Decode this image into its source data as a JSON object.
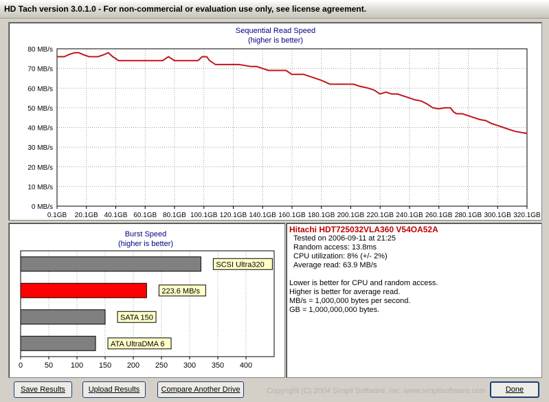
{
  "window": {
    "title": "HD Tach version 3.0.1.0  - For non-commercial or evaluation use only, see license agreement."
  },
  "colors": {
    "line": "#c0141e",
    "burst_highlight": "#ff0000",
    "burst_bar": "#808080",
    "label_bg": "#ffffc8",
    "drive_name": "#c00000"
  },
  "sequential": {
    "title": "Sequential Read Speed",
    "subtitle": "(higher is better)",
    "y_ticks": [
      "80 MB/s",
      "70 MB/s",
      "60 MB/s",
      "50 MB/s",
      "40 MB/s",
      "30 MB/s",
      "20 MB/s",
      "10 MB/s",
      "0 MB/s"
    ],
    "x_ticks": [
      "0.1GB",
      "20.1GB",
      "40.1GB",
      "60.1GB",
      "80.1GB",
      "100.1GB",
      "120.1GB",
      "140.1GB",
      "160.1GB",
      "180.1GB",
      "200.1GB",
      "220.1GB",
      "240.1GB",
      "260.1GB",
      "280.1GB",
      "300.1GB",
      "320.1GB"
    ]
  },
  "burst": {
    "title": "Burst Speed",
    "subtitle": "(higher is better)",
    "x_ticks": [
      "0",
      "50",
      "100",
      "150",
      "200",
      "250",
      "300",
      "350",
      "400"
    ],
    "bars": [
      {
        "label": "SCSI Ultra320",
        "value": 320,
        "highlight": false
      },
      {
        "label": "223.6 MB/s",
        "value": 223.6,
        "highlight": true
      },
      {
        "label": "SATA 150",
        "value": 150,
        "highlight": false
      },
      {
        "label": "ATA UltraDMA 6",
        "value": 133,
        "highlight": false
      }
    ]
  },
  "info": {
    "drive": "Hitachi HDT725032VLA360 V54OA52A",
    "tested": "Tested on 2006-09-11 at 21:25",
    "random_access": "Random access: 13.8ms",
    "cpu": "CPU utilization: 8% (+/- 2%)",
    "average_read": "Average read: 63.9 MB/s",
    "notes": [
      "Lower is better for CPU and random access.",
      "Higher is better for average read.",
      "MB/s = 1,000,000 bytes per second.",
      "GB = 1,000,000,000 bytes."
    ]
  },
  "buttons": {
    "save": "Save Results",
    "upload": "Upload Results",
    "compare": "Compare Another Drive",
    "done": "Done"
  },
  "copyright": "Copyright (C) 2004 Simpli Software, Inc. www.simplisoftware.com",
  "chart_data": [
    {
      "type": "line",
      "title": "Sequential Read Speed",
      "subtitle": "(higher is better)",
      "xlabel": "",
      "ylabel": "",
      "ylim": [
        0,
        80
      ],
      "xlim": [
        0.1,
        320.1
      ],
      "grid": true,
      "series": [
        {
          "x": [
            0.1,
            5,
            8,
            12,
            15,
            18,
            22,
            26,
            28,
            32,
            35,
            38,
            42,
            48,
            54,
            60,
            66,
            72,
            74,
            76,
            78,
            80,
            82,
            86,
            92,
            96,
            99,
            102,
            104,
            108,
            112,
            116,
            120,
            124,
            128,
            132,
            136,
            140,
            144,
            148,
            152,
            156,
            160,
            164,
            168,
            172,
            176,
            180,
            186,
            190,
            194,
            198,
            202,
            206,
            212,
            216,
            220,
            224,
            228,
            232,
            236,
            240,
            244,
            248,
            252,
            256,
            260,
            264,
            268,
            270,
            272,
            276,
            280,
            284,
            288,
            292,
            296,
            300,
            304,
            308,
            312,
            316,
            320.1
          ],
          "y": [
            76,
            76,
            77,
            78,
            78,
            77,
            76,
            76,
            76,
            77,
            78,
            76,
            74,
            74,
            74,
            74,
            74,
            74,
            75,
            76,
            75,
            74,
            74,
            74,
            74,
            74,
            76,
            76,
            74,
            72,
            72,
            72,
            72,
            72,
            71.5,
            71,
            71,
            70,
            69,
            69,
            69,
            69,
            67,
            67,
            67,
            66,
            65,
            64,
            62,
            62,
            62,
            62,
            62,
            61,
            60,
            59,
            57,
            58,
            57,
            57,
            56,
            55,
            54,
            53.5,
            52,
            50,
            49.5,
            50,
            50,
            48,
            47,
            47,
            46,
            45,
            44,
            43.5,
            42,
            41,
            40,
            39,
            38,
            37.5,
            37
          ]
        }
      ]
    },
    {
      "type": "bar",
      "orientation": "horizontal",
      "title": "Burst Speed",
      "subtitle": "(higher is better)",
      "categories": [
        "SCSI Ultra320",
        "223.6 MB/s",
        "SATA 150",
        "ATA UltraDMA 6"
      ],
      "values": [
        320,
        223.6,
        150,
        133
      ],
      "xlim": [
        0,
        450
      ],
      "grid": true
    }
  ]
}
